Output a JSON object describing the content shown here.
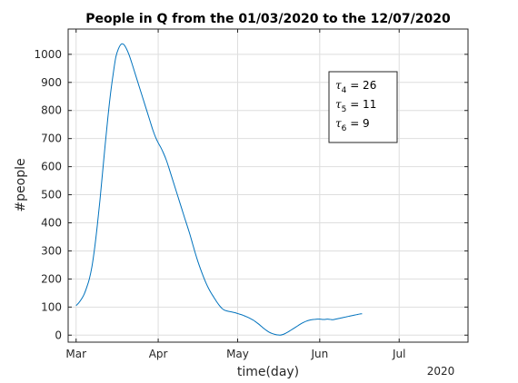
{
  "chart_data": {
    "type": "line",
    "title": "People in Q from the 01/03/2020 to the 12/07/2020",
    "xlabel": "time(day)",
    "ylabel": "#people",
    "x_year_label": "2020",
    "xlim": [
      "2020-02-27",
      "2020-07-27"
    ],
    "ylim": [
      -25,
      1090
    ],
    "y_ticks": [
      0,
      100,
      200,
      300,
      400,
      500,
      600,
      700,
      800,
      900,
      1000
    ],
    "x_ticks": [
      {
        "date": "2020-03-01",
        "label": "Mar"
      },
      {
        "date": "2020-04-01",
        "label": "Apr"
      },
      {
        "date": "2020-05-01",
        "label": "May"
      },
      {
        "date": "2020-06-01",
        "label": "Jun"
      },
      {
        "date": "2020-07-01",
        "label": "Jul"
      }
    ],
    "grid": true,
    "line_color": "#0072BD",
    "series": [
      {
        "points": [
          [
            "2020-03-01",
            105
          ],
          [
            "2020-03-02",
            115
          ],
          [
            "2020-03-03",
            128
          ],
          [
            "2020-03-04",
            145
          ],
          [
            "2020-03-05",
            170
          ],
          [
            "2020-03-06",
            200
          ],
          [
            "2020-03-07",
            245
          ],
          [
            "2020-03-08",
            310
          ],
          [
            "2020-03-09",
            390
          ],
          [
            "2020-03-10",
            480
          ],
          [
            "2020-03-11",
            580
          ],
          [
            "2020-03-12",
            680
          ],
          [
            "2020-03-13",
            775
          ],
          [
            "2020-03-14",
            860
          ],
          [
            "2020-03-15",
            930
          ],
          [
            "2020-03-16",
            990
          ],
          [
            "2020-03-17",
            1020
          ],
          [
            "2020-03-18",
            1036
          ],
          [
            "2020-03-19",
            1035
          ],
          [
            "2020-03-20",
            1020
          ],
          [
            "2020-03-21",
            998
          ],
          [
            "2020-03-22",
            970
          ],
          [
            "2020-03-23",
            940
          ],
          [
            "2020-03-24",
            910
          ],
          [
            "2020-03-25",
            880
          ],
          [
            "2020-03-26",
            850
          ],
          [
            "2020-03-27",
            820
          ],
          [
            "2020-03-28",
            790
          ],
          [
            "2020-03-29",
            760
          ],
          [
            "2020-03-30",
            730
          ],
          [
            "2020-03-31",
            705
          ],
          [
            "2020-04-01",
            685
          ],
          [
            "2020-04-02",
            668
          ],
          [
            "2020-04-03",
            648
          ],
          [
            "2020-04-04",
            625
          ],
          [
            "2020-04-05",
            597
          ],
          [
            "2020-04-06",
            567
          ],
          [
            "2020-04-07",
            537
          ],
          [
            "2020-04-08",
            507
          ],
          [
            "2020-04-09",
            477
          ],
          [
            "2020-04-10",
            447
          ],
          [
            "2020-04-11",
            417
          ],
          [
            "2020-04-12",
            388
          ],
          [
            "2020-04-13",
            358
          ],
          [
            "2020-04-14",
            325
          ],
          [
            "2020-04-15",
            292
          ],
          [
            "2020-04-16",
            262
          ],
          [
            "2020-04-17",
            235
          ],
          [
            "2020-04-18",
            210
          ],
          [
            "2020-04-19",
            187
          ],
          [
            "2020-04-20",
            167
          ],
          [
            "2020-04-21",
            150
          ],
          [
            "2020-04-22",
            135
          ],
          [
            "2020-04-23",
            120
          ],
          [
            "2020-04-24",
            107
          ],
          [
            "2020-04-25",
            96
          ],
          [
            "2020-04-26",
            89
          ],
          [
            "2020-04-27",
            86
          ],
          [
            "2020-04-28",
            84
          ],
          [
            "2020-04-29",
            82
          ],
          [
            "2020-04-30",
            80
          ],
          [
            "2020-05-01",
            77
          ],
          [
            "2020-05-02",
            74
          ],
          [
            "2020-05-03",
            71
          ],
          [
            "2020-05-04",
            67
          ],
          [
            "2020-05-05",
            63
          ],
          [
            "2020-05-06",
            58
          ],
          [
            "2020-05-07",
            53
          ],
          [
            "2020-05-08",
            46
          ],
          [
            "2020-05-09",
            39
          ],
          [
            "2020-05-10",
            31
          ],
          [
            "2020-05-11",
            23
          ],
          [
            "2020-05-12",
            16
          ],
          [
            "2020-05-13",
            10
          ],
          [
            "2020-05-14",
            6
          ],
          [
            "2020-05-15",
            3
          ],
          [
            "2020-05-16",
            1
          ],
          [
            "2020-05-17",
            0
          ],
          [
            "2020-05-18",
            2
          ],
          [
            "2020-05-19",
            6
          ],
          [
            "2020-05-20",
            11
          ],
          [
            "2020-05-21",
            17
          ],
          [
            "2020-05-22",
            23
          ],
          [
            "2020-05-23",
            29
          ],
          [
            "2020-05-24",
            35
          ],
          [
            "2020-05-25",
            41
          ],
          [
            "2020-05-26",
            46
          ],
          [
            "2020-05-27",
            50
          ],
          [
            "2020-05-28",
            53
          ],
          [
            "2020-05-29",
            55
          ],
          [
            "2020-05-30",
            56
          ],
          [
            "2020-05-31",
            57
          ],
          [
            "2020-06-01",
            57
          ],
          [
            "2020-06-02",
            56
          ],
          [
            "2020-06-03",
            56
          ],
          [
            "2020-06-04",
            57
          ],
          [
            "2020-06-05",
            56
          ],
          [
            "2020-06-06",
            55
          ],
          [
            "2020-06-07",
            57
          ],
          [
            "2020-06-08",
            59
          ],
          [
            "2020-06-09",
            61
          ],
          [
            "2020-06-10",
            63
          ],
          [
            "2020-06-11",
            65
          ],
          [
            "2020-06-12",
            67
          ],
          [
            "2020-06-13",
            69
          ],
          [
            "2020-06-14",
            71
          ],
          [
            "2020-06-15",
            73
          ],
          [
            "2020-06-16",
            75
          ],
          [
            "2020-06-17",
            76
          ]
        ]
      }
    ],
    "legend": {
      "placement": "top-right",
      "entries": [
        {
          "symbol": "τ",
          "subscript": "4",
          "value": "26"
        },
        {
          "symbol": "τ",
          "subscript": "5",
          "value": "11"
        },
        {
          "symbol": "τ",
          "subscript": "6",
          "value": "9"
        }
      ]
    }
  }
}
